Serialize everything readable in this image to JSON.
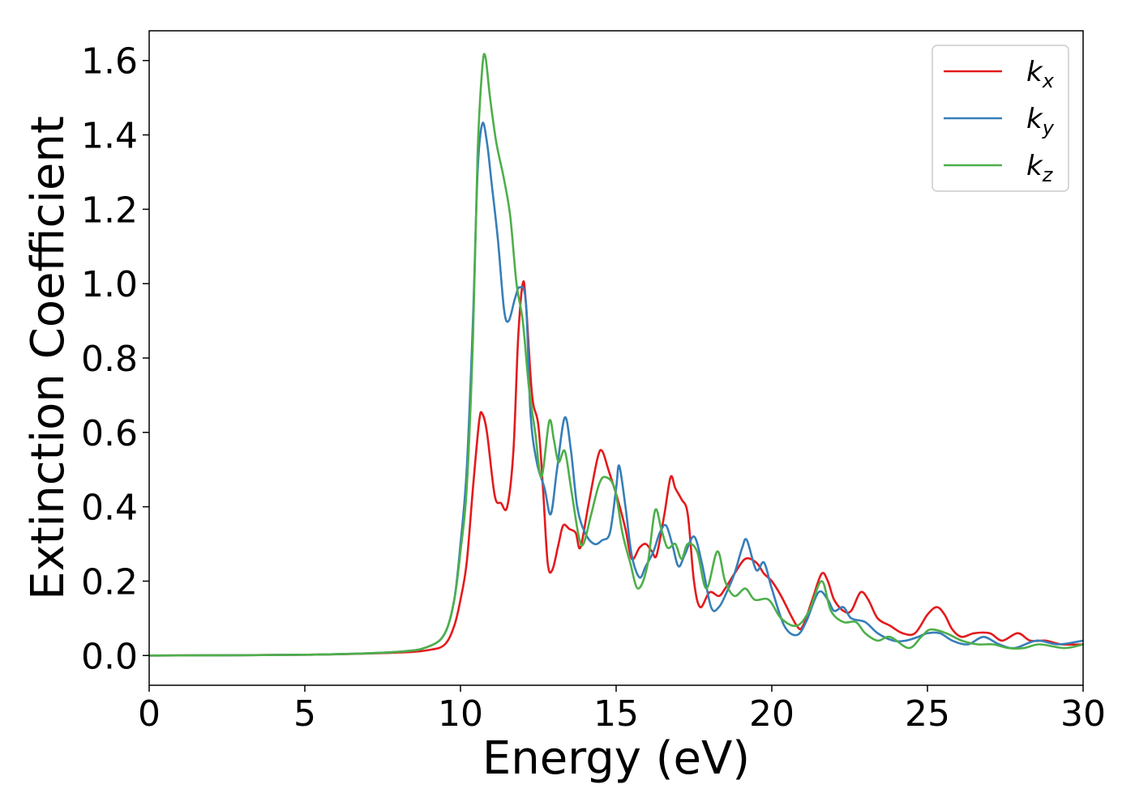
{
  "chart_data": {
    "type": "line",
    "xlabel": "Energy (eV)",
    "ylabel": "Extinction Coefficient",
    "xlim": [
      0,
      30
    ],
    "ylim": [
      -0.08,
      1.68
    ],
    "x_ticks": [
      0,
      5,
      10,
      15,
      20,
      25,
      30
    ],
    "y_ticks": [
      0.0,
      0.2,
      0.4,
      0.6,
      0.8,
      1.0,
      1.2,
      1.4,
      1.6
    ],
    "grid": false,
    "legend_position": "top-right",
    "series": [
      {
        "name": "k",
        "subscript": "x",
        "color": "#e41a1c",
        "points": [
          [
            0,
            0.0
          ],
          [
            5,
            0.002
          ],
          [
            8,
            0.008
          ],
          [
            9,
            0.015
          ],
          [
            9.5,
            0.03
          ],
          [
            9.8,
            0.08
          ],
          [
            10.0,
            0.15
          ],
          [
            10.2,
            0.25
          ],
          [
            10.4,
            0.45
          ],
          [
            10.6,
            0.63
          ],
          [
            10.7,
            0.65
          ],
          [
            10.85,
            0.6
          ],
          [
            11.1,
            0.43
          ],
          [
            11.3,
            0.41
          ],
          [
            11.5,
            0.4
          ],
          [
            11.7,
            0.55
          ],
          [
            11.85,
            0.85
          ],
          [
            12.0,
            1.0
          ],
          [
            12.1,
            0.95
          ],
          [
            12.3,
            0.7
          ],
          [
            12.5,
            0.62
          ],
          [
            12.65,
            0.45
          ],
          [
            12.8,
            0.25
          ],
          [
            12.95,
            0.23
          ],
          [
            13.15,
            0.3
          ],
          [
            13.3,
            0.35
          ],
          [
            13.5,
            0.34
          ],
          [
            13.7,
            0.33
          ],
          [
            13.85,
            0.29
          ],
          [
            14.1,
            0.4
          ],
          [
            14.4,
            0.53
          ],
          [
            14.55,
            0.55
          ],
          [
            14.75,
            0.5
          ],
          [
            15.05,
            0.42
          ],
          [
            15.3,
            0.34
          ],
          [
            15.5,
            0.26
          ],
          [
            15.75,
            0.29
          ],
          [
            15.95,
            0.3
          ],
          [
            16.15,
            0.28
          ],
          [
            16.3,
            0.27
          ],
          [
            16.55,
            0.38
          ],
          [
            16.75,
            0.48
          ],
          [
            16.9,
            0.45
          ],
          [
            17.1,
            0.42
          ],
          [
            17.3,
            0.38
          ],
          [
            17.5,
            0.2
          ],
          [
            17.7,
            0.13
          ],
          [
            18.0,
            0.17
          ],
          [
            18.3,
            0.16
          ],
          [
            18.5,
            0.18
          ],
          [
            18.8,
            0.22
          ],
          [
            19.15,
            0.26
          ],
          [
            19.5,
            0.25
          ],
          [
            19.75,
            0.22
          ],
          [
            20.0,
            0.2
          ],
          [
            20.3,
            0.16
          ],
          [
            20.8,
            0.08
          ],
          [
            21.0,
            0.08
          ],
          [
            21.3,
            0.15
          ],
          [
            21.6,
            0.22
          ],
          [
            21.8,
            0.2
          ],
          [
            22.0,
            0.15
          ],
          [
            22.3,
            0.12
          ],
          [
            22.55,
            0.12
          ],
          [
            22.85,
            0.17
          ],
          [
            23.1,
            0.15
          ],
          [
            23.4,
            0.1
          ],
          [
            23.8,
            0.08
          ],
          [
            24.2,
            0.06
          ],
          [
            24.6,
            0.06
          ],
          [
            25.0,
            0.11
          ],
          [
            25.3,
            0.13
          ],
          [
            25.55,
            0.11
          ],
          [
            25.8,
            0.07
          ],
          [
            26.1,
            0.05
          ],
          [
            26.5,
            0.06
          ],
          [
            27.0,
            0.06
          ],
          [
            27.4,
            0.04
          ],
          [
            27.9,
            0.06
          ],
          [
            28.3,
            0.04
          ],
          [
            28.8,
            0.04
          ],
          [
            29.3,
            0.03
          ],
          [
            30.0,
            0.03
          ]
        ]
      },
      {
        "name": "k",
        "subscript": "y",
        "color": "#377eb8",
        "points": [
          [
            0,
            0.0
          ],
          [
            5,
            0.002
          ],
          [
            8,
            0.01
          ],
          [
            9,
            0.025
          ],
          [
            9.5,
            0.06
          ],
          [
            9.8,
            0.15
          ],
          [
            10.0,
            0.3
          ],
          [
            10.2,
            0.5
          ],
          [
            10.4,
            0.9
          ],
          [
            10.55,
            1.3
          ],
          [
            10.7,
            1.43
          ],
          [
            10.85,
            1.38
          ],
          [
            11.0,
            1.27
          ],
          [
            11.2,
            1.12
          ],
          [
            11.4,
            0.93
          ],
          [
            11.55,
            0.9
          ],
          [
            11.75,
            0.96
          ],
          [
            11.9,
            0.99
          ],
          [
            12.1,
            0.95
          ],
          [
            12.25,
            0.65
          ],
          [
            12.45,
            0.52
          ],
          [
            12.7,
            0.45
          ],
          [
            12.9,
            0.38
          ],
          [
            13.1,
            0.5
          ],
          [
            13.35,
            0.64
          ],
          [
            13.55,
            0.55
          ],
          [
            13.75,
            0.4
          ],
          [
            14.0,
            0.33
          ],
          [
            14.3,
            0.3
          ],
          [
            14.55,
            0.31
          ],
          [
            14.8,
            0.33
          ],
          [
            15.0,
            0.45
          ],
          [
            15.1,
            0.51
          ],
          [
            15.3,
            0.4
          ],
          [
            15.5,
            0.27
          ],
          [
            15.75,
            0.21
          ],
          [
            15.95,
            0.24
          ],
          [
            16.2,
            0.28
          ],
          [
            16.4,
            0.33
          ],
          [
            16.6,
            0.35
          ],
          [
            16.8,
            0.3
          ],
          [
            17.0,
            0.24
          ],
          [
            17.2,
            0.27
          ],
          [
            17.5,
            0.32
          ],
          [
            17.75,
            0.25
          ],
          [
            18.05,
            0.13
          ],
          [
            18.3,
            0.13
          ],
          [
            18.55,
            0.17
          ],
          [
            18.8,
            0.22
          ],
          [
            19.05,
            0.29
          ],
          [
            19.2,
            0.31
          ],
          [
            19.5,
            0.23
          ],
          [
            19.75,
            0.25
          ],
          [
            20.0,
            0.18
          ],
          [
            20.4,
            0.08
          ],
          [
            20.8,
            0.055
          ],
          [
            21.1,
            0.09
          ],
          [
            21.5,
            0.17
          ],
          [
            21.8,
            0.15
          ],
          [
            22.0,
            0.12
          ],
          [
            22.3,
            0.13
          ],
          [
            22.55,
            0.1
          ],
          [
            23.0,
            0.09
          ],
          [
            23.4,
            0.06
          ],
          [
            23.9,
            0.04
          ],
          [
            24.3,
            0.04
          ],
          [
            24.7,
            0.05
          ],
          [
            25.0,
            0.06
          ],
          [
            25.4,
            0.06
          ],
          [
            25.8,
            0.04
          ],
          [
            26.3,
            0.03
          ],
          [
            26.8,
            0.05
          ],
          [
            27.3,
            0.03
          ],
          [
            27.8,
            0.02
          ],
          [
            28.5,
            0.04
          ],
          [
            29.2,
            0.03
          ],
          [
            30.0,
            0.04
          ]
        ]
      },
      {
        "name": "k",
        "subscript": "z",
        "color": "#4daf4a",
        "points": [
          [
            0,
            0.0
          ],
          [
            5,
            0.002
          ],
          [
            8,
            0.01
          ],
          [
            9,
            0.025
          ],
          [
            9.5,
            0.06
          ],
          [
            9.8,
            0.15
          ],
          [
            10.0,
            0.28
          ],
          [
            10.2,
            0.45
          ],
          [
            10.4,
            0.85
          ],
          [
            10.55,
            1.35
          ],
          [
            10.7,
            1.58
          ],
          [
            10.8,
            1.61
          ],
          [
            10.95,
            1.5
          ],
          [
            11.15,
            1.38
          ],
          [
            11.4,
            1.28
          ],
          [
            11.6,
            1.18
          ],
          [
            11.8,
            1.0
          ],
          [
            12.0,
            0.9
          ],
          [
            12.2,
            0.72
          ],
          [
            12.4,
            0.6
          ],
          [
            12.6,
            0.48
          ],
          [
            12.85,
            0.63
          ],
          [
            13.0,
            0.58
          ],
          [
            13.15,
            0.52
          ],
          [
            13.35,
            0.55
          ],
          [
            13.55,
            0.45
          ],
          [
            13.8,
            0.32
          ],
          [
            13.95,
            0.3
          ],
          [
            14.2,
            0.38
          ],
          [
            14.45,
            0.46
          ],
          [
            14.65,
            0.48
          ],
          [
            14.95,
            0.45
          ],
          [
            15.2,
            0.33
          ],
          [
            15.45,
            0.25
          ],
          [
            15.7,
            0.18
          ],
          [
            16.0,
            0.24
          ],
          [
            16.25,
            0.39
          ],
          [
            16.45,
            0.34
          ],
          [
            16.65,
            0.29
          ],
          [
            16.9,
            0.3
          ],
          [
            17.1,
            0.26
          ],
          [
            17.3,
            0.3
          ],
          [
            17.6,
            0.28
          ],
          [
            17.9,
            0.18
          ],
          [
            18.25,
            0.28
          ],
          [
            18.5,
            0.2
          ],
          [
            18.8,
            0.16
          ],
          [
            19.15,
            0.18
          ],
          [
            19.45,
            0.15
          ],
          [
            19.9,
            0.15
          ],
          [
            20.3,
            0.1
          ],
          [
            20.8,
            0.08
          ],
          [
            21.2,
            0.12
          ],
          [
            21.6,
            0.2
          ],
          [
            21.9,
            0.12
          ],
          [
            22.3,
            0.09
          ],
          [
            22.7,
            0.09
          ],
          [
            23.0,
            0.06
          ],
          [
            23.4,
            0.04
          ],
          [
            23.8,
            0.05
          ],
          [
            24.4,
            0.02
          ],
          [
            24.8,
            0.05
          ],
          [
            25.1,
            0.07
          ],
          [
            25.6,
            0.06
          ],
          [
            26.1,
            0.04
          ],
          [
            26.6,
            0.03
          ],
          [
            27.1,
            0.03
          ],
          [
            27.6,
            0.02
          ],
          [
            28.1,
            0.02
          ],
          [
            28.6,
            0.03
          ],
          [
            29.4,
            0.02
          ],
          [
            30.0,
            0.03
          ]
        ]
      }
    ]
  }
}
